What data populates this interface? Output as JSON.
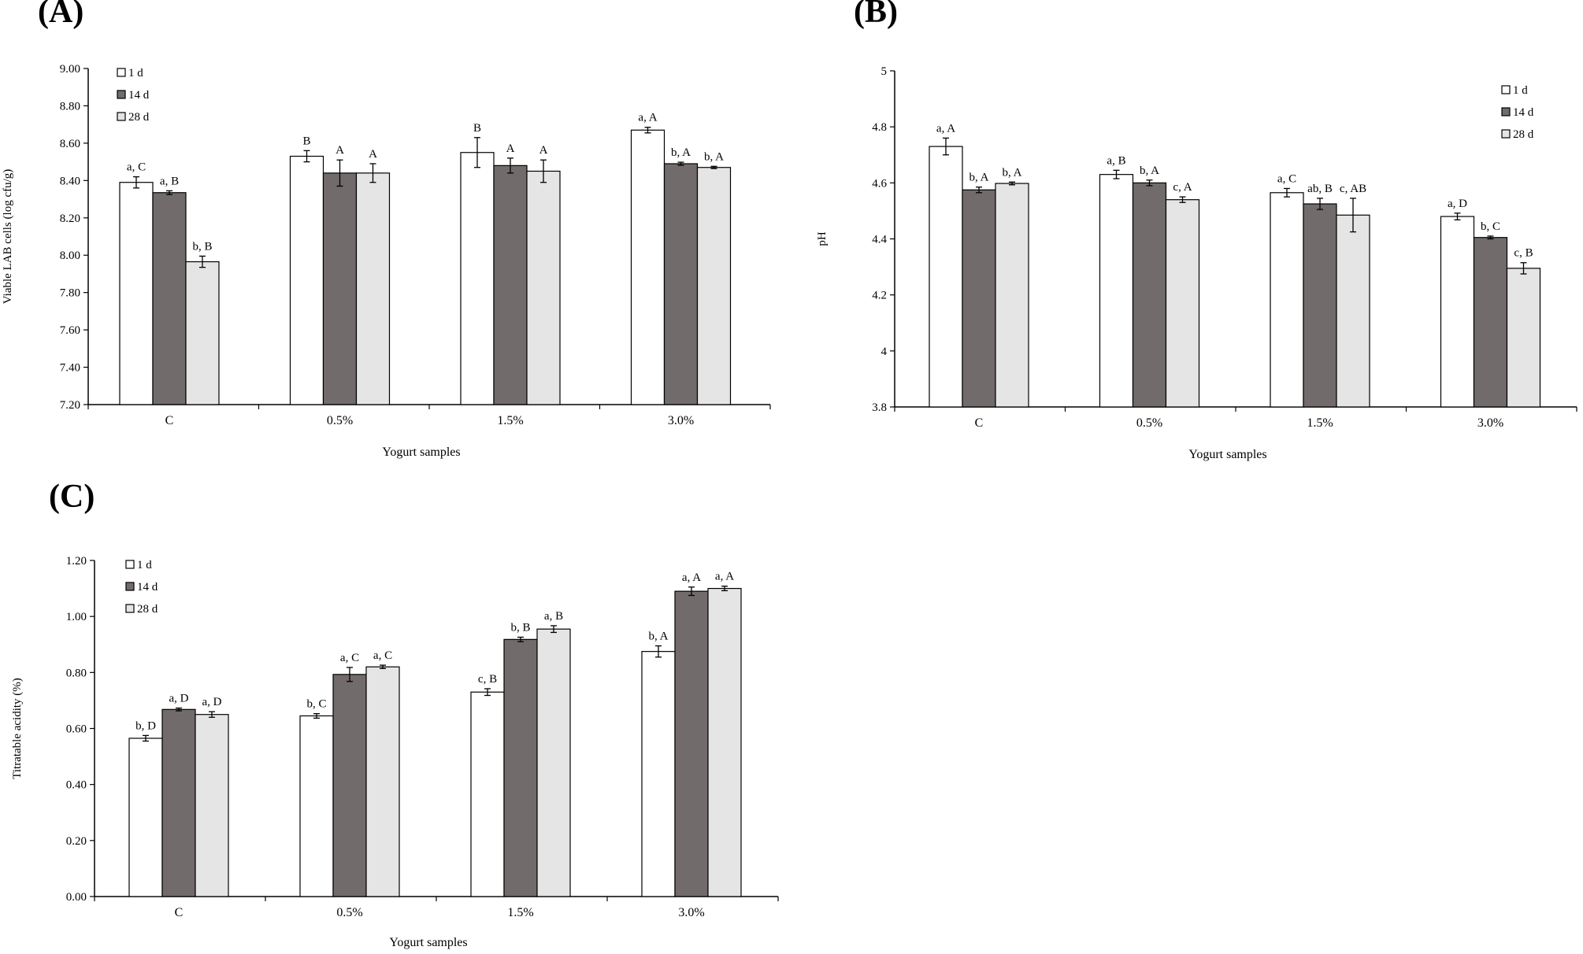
{
  "chart_data": [
    {
      "panel": "(A)",
      "type": "bar",
      "title": "",
      "xlabel": "Yogurt samples",
      "ylabel": "Viable LAB cells (log cfu/g)",
      "ylim": [
        7.2,
        9.0
      ],
      "yticks": [
        "7.20",
        "7.40",
        "7.60",
        "7.80",
        "8.00",
        "8.20",
        "8.40",
        "8.60",
        "8.80",
        "9.00"
      ],
      "grid": false,
      "legend_position": "top-left",
      "categories": [
        "C",
        "0.5%",
        "1.5%",
        "3.0%"
      ],
      "series": [
        {
          "name": "1 d",
          "color": "#ffffff",
          "values": [
            8.39,
            8.53,
            8.55,
            8.67
          ],
          "errors": [
            0.03,
            0.03,
            0.08,
            0.015
          ],
          "labels": [
            "a, C",
            "B",
            "B",
            "a, A"
          ]
        },
        {
          "name": "14 d",
          "color": "#726b6b",
          "values": [
            8.335,
            8.44,
            8.48,
            8.49
          ],
          "errors": [
            0.01,
            0.07,
            0.04,
            0.008
          ],
          "labels": [
            "a, B",
            "A",
            "A",
            "b, A"
          ]
        },
        {
          "name": "28 d",
          "color": "#e6e5e6",
          "values": [
            7.965,
            8.44,
            8.45,
            8.47
          ],
          "errors": [
            0.03,
            0.05,
            0.06,
            0.006
          ],
          "labels": [
            "b, B",
            "A",
            "A",
            "b, A"
          ]
        }
      ]
    },
    {
      "panel": "(B)",
      "type": "bar",
      "title": "",
      "xlabel": "Yogurt samples",
      "ylabel": "pH",
      "ylim": [
        3.8,
        5.0
      ],
      "yticks": [
        "3.8",
        "4",
        "4.2",
        "4.4",
        "4.6",
        "4.8",
        "5"
      ],
      "grid": false,
      "legend_position": "top-right",
      "categories": [
        "C",
        "0.5%",
        "1.5%",
        "3.0%"
      ],
      "series": [
        {
          "name": "1 d",
          "color": "#ffffff",
          "values": [
            4.73,
            4.63,
            4.565,
            4.48
          ],
          "errors": [
            0.03,
            0.015,
            0.015,
            0.012
          ],
          "labels": [
            "a, A",
            "a, B",
            "a, C",
            "a, D"
          ]
        },
        {
          "name": "14 d",
          "color": "#726b6b",
          "values": [
            4.575,
            4.6,
            4.525,
            4.405
          ],
          "errors": [
            0.01,
            0.01,
            0.02,
            0.005
          ],
          "labels": [
            "b, A",
            "b, A",
            "ab, B",
            "b, C"
          ]
        },
        {
          "name": "28 d",
          "color": "#e6e5e6",
          "values": [
            4.598,
            4.54,
            4.485,
            4.295
          ],
          "errors": [
            0.005,
            0.01,
            0.06,
            0.02
          ],
          "labels": [
            "b, A",
            "c, A",
            "c, AB",
            "c, B"
          ]
        }
      ]
    },
    {
      "panel": "(C)",
      "type": "bar",
      "title": "",
      "xlabel": "Yogurt samples",
      "ylabel": "Titratable acidity (%)",
      "ylim": [
        0,
        1.2
      ],
      "yticks": [
        "0.00",
        "0.20",
        "0.40",
        "0.60",
        "0.80",
        "1.00",
        "1.20"
      ],
      "grid": false,
      "legend_position": "top-left",
      "categories": [
        "C",
        "0.5%",
        "1.5%",
        "3.0%"
      ],
      "series": [
        {
          "name": "1 d",
          "color": "#ffffff",
          "values": [
            0.565,
            0.645,
            0.73,
            0.875
          ],
          "errors": [
            0.01,
            0.008,
            0.012,
            0.02
          ],
          "labels": [
            "b, D",
            "b, C",
            "c, B",
            "b, A"
          ]
        },
        {
          "name": "14 d",
          "color": "#726b6b",
          "values": [
            0.668,
            0.793,
            0.918,
            1.09
          ],
          "errors": [
            0.005,
            0.025,
            0.008,
            0.015
          ],
          "labels": [
            "a, D",
            "a, C",
            "b, B",
            "a, A"
          ]
        },
        {
          "name": "28 d",
          "color": "#e6e5e6",
          "values": [
            0.65,
            0.82,
            0.955,
            1.1
          ],
          "errors": [
            0.01,
            0.006,
            0.012,
            0.008
          ],
          "labels": [
            "a, D",
            "a, C",
            "a, B",
            "a, A"
          ]
        }
      ]
    }
  ]
}
